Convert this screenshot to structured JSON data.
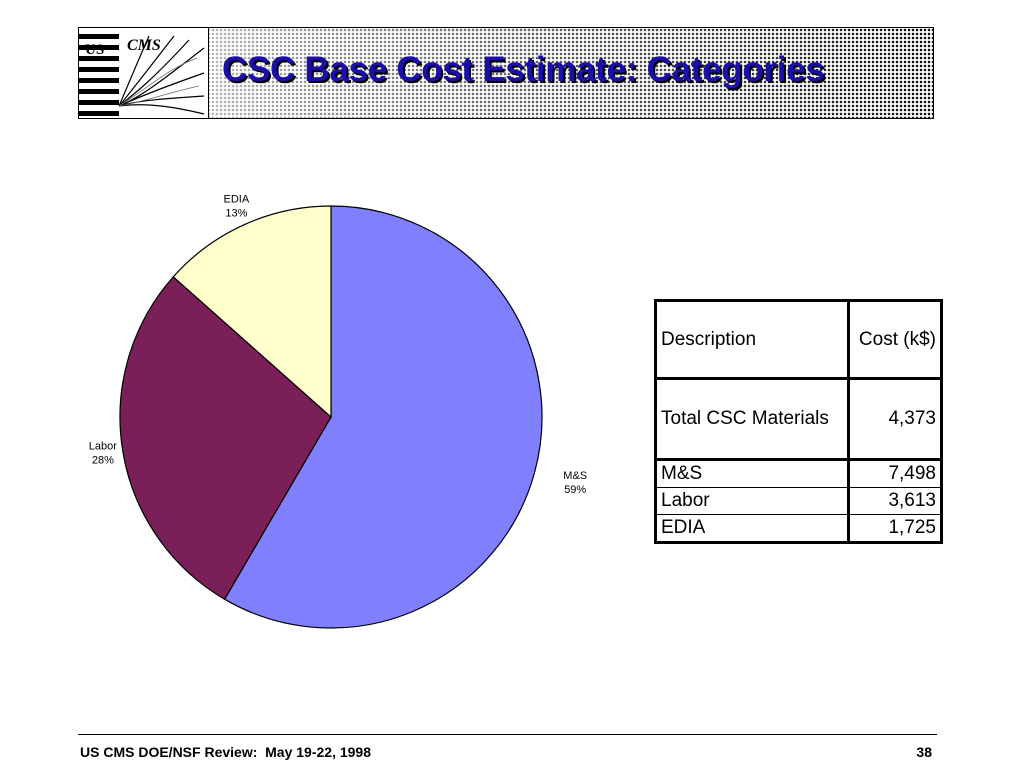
{
  "slide": {
    "title": "CSC Base Cost Estimate: Categories",
    "footer_left": "US CMS DOE/NSF Review:  May 19-22, 1998",
    "page_number": "38"
  },
  "chart_data": {
    "type": "pie",
    "slices": [
      {
        "label": "M&S",
        "percent_label": "59%",
        "value": 7498,
        "color": "#8080ff"
      },
      {
        "label": "Labor",
        "percent_label": "28%",
        "value": 3613,
        "color": "#7a1f58"
      },
      {
        "label": "EDIA",
        "percent_label": "13%",
        "value": 1725,
        "color": "#ffffcc"
      }
    ],
    "start_angle_deg": 0,
    "direction": "clockwise",
    "legend": "none",
    "data_labels": "outside"
  },
  "table": {
    "headers": [
      "Description",
      "Cost (k$)"
    ],
    "rows": [
      [
        "Total CSC Materials",
        "4,373"
      ],
      [
        "M&S",
        "7,498"
      ],
      [
        "Labor",
        "3,613"
      ],
      [
        "EDIA",
        "1,725"
      ]
    ]
  },
  "colors": {
    "title": "#1a0fa8",
    "pie_outline": "#000000"
  }
}
